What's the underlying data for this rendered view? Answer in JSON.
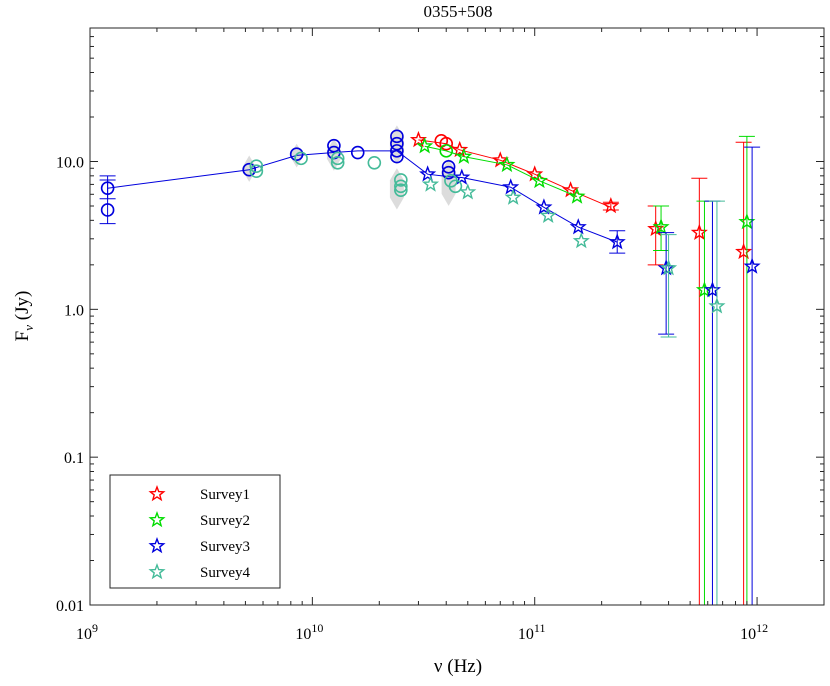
{
  "chart_data": {
    "type": "scatter",
    "title": "0355+508",
    "xlabel": "ν (Hz)",
    "ylabel_main": "F",
    "ylabel_sub": "ν",
    "ylabel_unit": " (Jy)",
    "xscale": "log",
    "yscale": "log",
    "xlim": [
      1000000000.0,
      2000000000000.0
    ],
    "ylim": [
      0.01,
      80
    ],
    "x_ticks": [
      {
        "value": 1000000000.0,
        "base": "10",
        "exp": "9"
      },
      {
        "value": 10000000000.0,
        "base": "10",
        "exp": "10"
      },
      {
        "value": 100000000000.0,
        "base": "10",
        "exp": "11"
      },
      {
        "value": 1000000000000.0,
        "base": "10",
        "exp": "12"
      }
    ],
    "y_ticks": [
      {
        "value": 0.01,
        "label": "0.01"
      },
      {
        "value": 0.1,
        "label": "0.1"
      },
      {
        "value": 1,
        "label": "1.0"
      },
      {
        "value": 10,
        "label": "10.0"
      }
    ],
    "legend_position": "bottom-left",
    "series": [
      {
        "name": "Survey1",
        "color": "#ff0000",
        "line": [
          [
            30000000000.0,
            14.0
          ],
          [
            40000000000.0,
            13.2
          ],
          [
            46000000000.0,
            12.0
          ],
          [
            70000000000.0,
            10.2
          ],
          [
            100000000000.0,
            8.2
          ],
          [
            145000000000.0,
            6.4
          ],
          [
            220000000000.0,
            4.9
          ]
        ],
        "circles": [
          [
            38000000000.0,
            13.8
          ],
          [
            40000000000.0,
            13.2
          ]
        ],
        "stars": [
          [
            30000000000.0,
            14.0
          ],
          [
            46000000000.0,
            12.0
          ],
          [
            70000000000.0,
            10.2
          ],
          [
            100000000000.0,
            8.2
          ],
          [
            145000000000.0,
            6.4
          ],
          [
            220000000000.0,
            5.0
          ],
          [
            350000000000.0,
            3.5
          ],
          [
            550000000000.0,
            3.3
          ],
          [
            870000000000.0,
            2.45
          ]
        ],
        "errors": [
          [
            220000000000.0,
            4.7,
            5.3
          ],
          [
            350000000000.0,
            2.0,
            5.0
          ],
          [
            550000000000.0,
            0.01,
            7.7
          ],
          [
            870000000000.0,
            0.01,
            13.5
          ]
        ]
      },
      {
        "name": "Survey2",
        "color": "#00dd00",
        "line": [
          [
            32000000000.0,
            12.7
          ],
          [
            40000000000.0,
            11.8
          ],
          [
            48000000000.0,
            10.8
          ],
          [
            75000000000.0,
            9.5
          ],
          [
            105000000000.0,
            7.4
          ],
          [
            155000000000.0,
            5.8
          ]
        ],
        "circles": [
          [
            40000000000.0,
            11.8
          ]
        ],
        "stars": [
          [
            32000000000.0,
            12.7
          ],
          [
            48000000000.0,
            10.8
          ],
          [
            75000000000.0,
            9.5
          ],
          [
            105000000000.0,
            7.4
          ],
          [
            155000000000.0,
            5.8
          ],
          [
            370000000000.0,
            3.6
          ],
          [
            580000000000.0,
            1.35
          ],
          [
            900000000000.0,
            3.9
          ]
        ],
        "errors": [
          [
            370000000000.0,
            2.5,
            5.0
          ],
          [
            580000000000.0,
            0.01,
            5.4
          ],
          [
            900000000000.0,
            0.01,
            14.8
          ]
        ]
      },
      {
        "name": "Survey3",
        "color": "#0000dd",
        "line": [
          [
            1200000000.0,
            6.6
          ],
          [
            5200000000.0,
            8.8
          ],
          [
            8500000000.0,
            11.0
          ],
          [
            12500000000.0,
            11.5
          ],
          [
            16000000000.0,
            11.8
          ],
          [
            24000000000.0,
            11.8
          ],
          [
            33000000000.0,
            8.2
          ],
          [
            41000000000.0,
            7.9
          ],
          [
            47000000000.0,
            7.8
          ],
          [
            78000000000.0,
            6.7
          ],
          [
            110000000000.0,
            4.9
          ],
          [
            157000000000.0,
            3.6
          ],
          [
            235000000000.0,
            2.85
          ]
        ],
        "circles": [
          [
            1200000000.0,
            6.6
          ],
          [
            1200000000.0,
            4.7
          ],
          [
            5200000000.0,
            8.8
          ],
          [
            8500000000.0,
            11.2
          ],
          [
            12500000000.0,
            12.8
          ],
          [
            12500000000.0,
            11.5
          ],
          [
            16000000000.0,
            11.5
          ],
          [
            24000000000.0,
            14.8
          ],
          [
            24000000000.0,
            13.2
          ],
          [
            24000000000.0,
            11.8
          ],
          [
            24000000000.0,
            10.8
          ],
          [
            41000000000.0,
            9.2
          ],
          [
            41000000000.0,
            8.4
          ]
        ],
        "stars": [
          [
            33000000000.0,
            8.2
          ],
          [
            47000000000.0,
            7.8
          ],
          [
            78000000000.0,
            6.7
          ],
          [
            110000000000.0,
            4.9
          ],
          [
            157000000000.0,
            3.6
          ],
          [
            235000000000.0,
            2.85
          ],
          [
            390000000000.0,
            1.9
          ],
          [
            630000000000.0,
            1.35
          ],
          [
            950000000000.0,
            1.95
          ]
        ],
        "errors": [
          [
            1200000000.0,
            3.8,
            8.0
          ],
          [
            1200000000.0,
            5.6,
            7.5
          ],
          [
            235000000000.0,
            2.4,
            3.4
          ],
          [
            390000000000.0,
            0.68,
            3.3
          ],
          [
            630000000000.0,
            0.01,
            5.4
          ],
          [
            950000000000.0,
            0.01,
            12.5
          ]
        ]
      },
      {
        "name": "Survey4",
        "color": "#44bb99",
        "line": [],
        "circles": [
          [
            5600000000.0,
            9.3
          ],
          [
            5600000000.0,
            8.6
          ],
          [
            8900000000.0,
            10.5
          ],
          [
            13000000000.0,
            10.5
          ],
          [
            13000000000.0,
            9.8
          ],
          [
            19000000000.0,
            9.8
          ],
          [
            25000000000.0,
            7.5
          ],
          [
            25000000000.0,
            6.8
          ],
          [
            25000000000.0,
            6.4
          ],
          [
            42000000000.0,
            7.4
          ],
          [
            44000000000.0,
            6.8
          ]
        ],
        "stars": [
          [
            34000000000.0,
            7.0
          ],
          [
            50000000000.0,
            6.2
          ],
          [
            80000000000.0,
            5.7
          ],
          [
            115000000000.0,
            4.3
          ],
          [
            162000000000.0,
            2.9
          ],
          [
            400000000000.0,
            1.9
          ],
          [
            660000000000.0,
            1.05
          ]
        ],
        "errors": [
          [
            400000000000.0,
            0.65,
            3.2
          ],
          [
            660000000000.0,
            0.01,
            5.4
          ]
        ]
      }
    ],
    "shaded_regions": [
      [
        5200000000.0,
        8.0,
        10.0
      ],
      [
        8500000000.0,
        10.0,
        12.0
      ],
      [
        12500000000.0,
        9.5,
        13.0
      ],
      [
        24000000000.0,
        10.5,
        16.0
      ],
      [
        24000000000.0,
        5.2,
        8.2
      ],
      [
        41000000000.0,
        5.5,
        9.5
      ]
    ]
  }
}
